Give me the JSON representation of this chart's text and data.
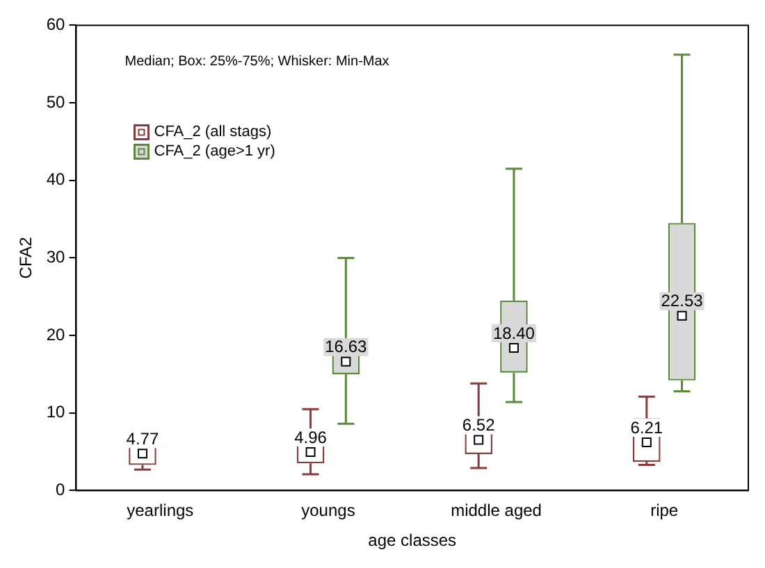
{
  "chart_data": {
    "type": "box",
    "xlabel": "age classes",
    "ylabel": "CFA2",
    "categories": [
      "yearlings",
      "youngs",
      "middle aged",
      "ripe"
    ],
    "ylim": [
      0,
      60
    ],
    "yticks": [
      0,
      10,
      20,
      30,
      40,
      50,
      60
    ],
    "grid": false,
    "legend": "top left",
    "marker": "square",
    "annotations": [
      "Median; Box: 25%-75%; Whisker: Min-Max"
    ],
    "series": [
      {
        "name": "CFA_2 (all stags)",
        "color": "#8b3a3a",
        "value_labels": [
          "4.77",
          "4.96",
          "6.52",
          "6.21"
        ],
        "boxes": [
          {
            "low": 2.7,
            "q1": 3.3,
            "median": 4.77,
            "q3": 5.9,
            "high": 6.0
          },
          {
            "low": 2.1,
            "q1": 3.5,
            "median": 4.96,
            "q3": 6.0,
            "high": 10.5
          },
          {
            "low": 2.9,
            "q1": 4.7,
            "median": 6.52,
            "q3": 8.6,
            "high": 13.8
          },
          {
            "low": 3.3,
            "q1": 3.7,
            "median": 6.21,
            "q3": 9.3,
            "high": 12.1
          }
        ]
      },
      {
        "name": "CFA_2 (age>1 yr)",
        "color": "#5a8a3a",
        "value_labels": [
          null,
          "16.63",
          "18.40",
          "22.53"
        ],
        "boxes": [
          null,
          {
            "low": 8.6,
            "q1": 15.0,
            "median": 16.63,
            "q3": 19.5,
            "high": 30.0
          },
          {
            "low": 11.4,
            "q1": 15.2,
            "median": 18.4,
            "q3": 24.5,
            "high": 41.5
          },
          {
            "low": 12.8,
            "q1": 14.2,
            "median": 22.53,
            "q3": 34.5,
            "high": 56.2
          }
        ]
      }
    ]
  }
}
